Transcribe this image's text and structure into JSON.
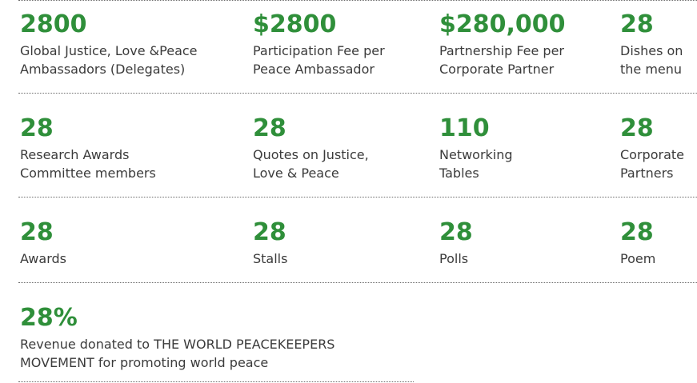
{
  "rows": [
    [
      {
        "value": "2800",
        "label_lines": [
          "Global Justice, Love &Peace",
          "Ambassadors (Delegates)"
        ]
      },
      {
        "value": "$2800",
        "label_lines": [
          "Participation Fee per",
          "Peace Ambassador"
        ]
      },
      {
        "value": "$280,000",
        "label_lines": [
          "Partnership Fee per",
          "Corporate Partner"
        ]
      },
      {
        "value": "28",
        "label_lines": [
          "Dishes on",
          "the menu"
        ]
      }
    ],
    [
      {
        "value": "28",
        "label_lines": [
          "Research Awards",
          "Committee members"
        ]
      },
      {
        "value": "28",
        "label_lines": [
          "Quotes on Justice,",
          "Love & Peace"
        ]
      },
      {
        "value": "110",
        "label_lines": [
          "Networking",
          "Tables"
        ]
      },
      {
        "value": "28",
        "label_lines": [
          "Corporate",
          "Partners"
        ]
      }
    ],
    [
      {
        "value": "28",
        "label_lines": [
          "Awards"
        ]
      },
      {
        "value": "28",
        "label_lines": [
          "Stalls"
        ]
      },
      {
        "value": "28",
        "label_lines": [
          "Polls"
        ]
      },
      {
        "value": "28",
        "label_lines": [
          "Poem"
        ]
      }
    ],
    [
      {
        "value": "28%",
        "label_lines": [
          "Revenue donated to THE WORLD PEACEKEEPERS",
          "MOVEMENT for promoting world peace"
        ]
      }
    ]
  ],
  "colors": {
    "value": "#2f8f3a",
    "label": "#3b3b3b",
    "separator": "#6b6b6b"
  }
}
